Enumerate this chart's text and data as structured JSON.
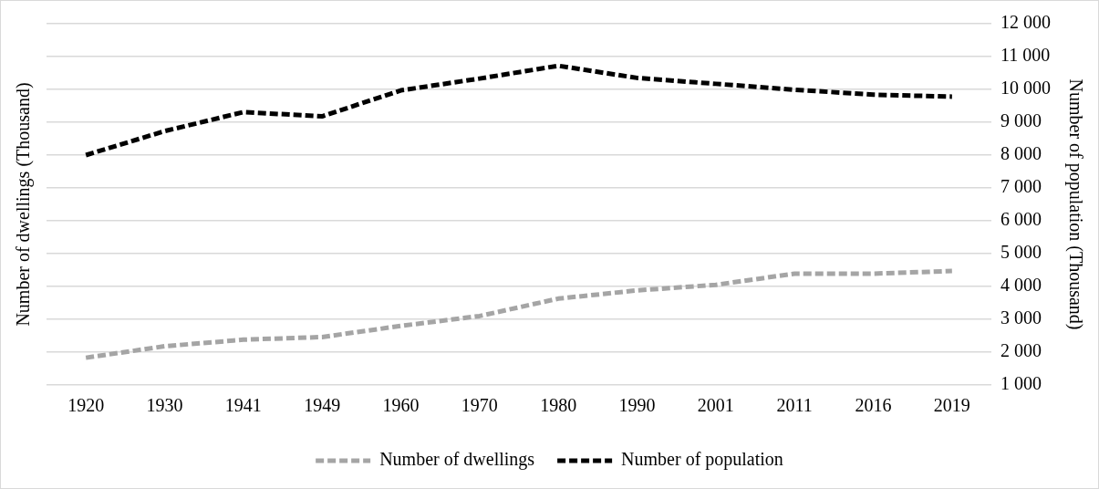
{
  "chart_data": {
    "type": "line",
    "ylabel": "Number of dwellings (Thousand)",
    "y2label": "Number of population (Thousand)",
    "categories": [
      "1920",
      "1930",
      "1941",
      "1949",
      "1960",
      "1970",
      "1980",
      "1990",
      "2001",
      "2011",
      "2016",
      "2019"
    ],
    "series": [
      {
        "name": "Number of dwellings",
        "color": "#a5a5a5",
        "axis": "y2",
        "line_style": "dashed",
        "values": [
          1830,
          2180,
          2380,
          2460,
          2800,
          3100,
          3630,
          3880,
          4050,
          4390,
          4390,
          4470
        ]
      },
      {
        "name": "Number of population",
        "color": "#000000",
        "axis": "y2",
        "line_style": "dashed",
        "values": [
          8000,
          8730,
          9310,
          9180,
          9970,
          10330,
          10720,
          10350,
          10170,
          9990,
          9840,
          9780
        ]
      }
    ],
    "y2lim": [
      1000,
      12000
    ],
    "y2ticks": [
      {
        "value": 1000,
        "label": "1 000"
      },
      {
        "value": 2000,
        "label": "2 000"
      },
      {
        "value": 3000,
        "label": "3 000"
      },
      {
        "value": 4000,
        "label": "4 000"
      },
      {
        "value": 5000,
        "label": "5 000"
      },
      {
        "value": 6000,
        "label": "6 000"
      },
      {
        "value": 7000,
        "label": "7 000"
      },
      {
        "value": 8000,
        "label": "8 000"
      },
      {
        "value": 9000,
        "label": "9 000"
      },
      {
        "value": 10000,
        "label": "10 000"
      },
      {
        "value": 11000,
        "label": "11 000"
      },
      {
        "value": 12000,
        "label": "12 000"
      }
    ],
    "grid": "y",
    "legend": "bottom",
    "marker": "none"
  }
}
